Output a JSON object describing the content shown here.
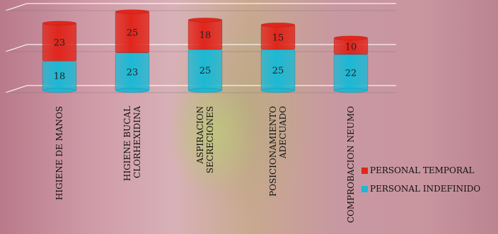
{
  "chart_data": {
    "type": "bar",
    "stacked": true,
    "categories": [
      [
        "HIGIENE DE MANOS"
      ],
      [
        "HIGIENE BUCAL",
        "CLORHEXIDINA"
      ],
      [
        "ASPIRACION",
        "SECRECIONES"
      ],
      [
        "POSICIONAMIENTO",
        "ADECUADO"
      ],
      [
        "COMPROBACION NEUMO"
      ]
    ],
    "series": [
      {
        "name": "PERSONAL INDEFINIDO",
        "values": [
          18,
          23,
          25,
          25,
          22
        ],
        "color": "#1cb8d4"
      },
      {
        "name": "PERSONAL TEMPORAL",
        "values": [
          23,
          25,
          18,
          15,
          10
        ],
        "color": "#e0261c"
      }
    ],
    "legend_order": [
      "PERSONAL TEMPORAL",
      "PERSONAL INDEFINIDO"
    ],
    "legend_position": "right",
    "ylim": [
      0,
      50
    ],
    "gridlines": [
      0,
      25,
      50
    ],
    "grid": true
  }
}
